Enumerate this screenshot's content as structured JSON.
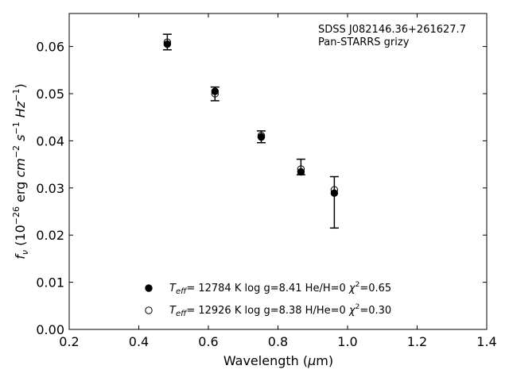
{
  "chart_data": {
    "type": "scatter",
    "annotation": [
      "SDSS J082146.36+261627.7",
      "Pan-STARRS grizy"
    ],
    "xlabel": "Wavelength (μm)",
    "ylabel": "f_ν (10^-26 erg cm^-2 s^-1 Hz^-1)",
    "xlim": [
      0.2,
      1.4
    ],
    "ylim": [
      0.0,
      0.067
    ],
    "xticks": [
      "0.2",
      "0.4",
      "0.6",
      "0.8",
      "1.0",
      "1.2",
      "1.4"
    ],
    "yticks": [
      "0.00",
      "0.01",
      "0.02",
      "0.03",
      "0.04",
      "0.05",
      "0.06"
    ],
    "grid": false,
    "legend_position": "bottom-center",
    "observed": {
      "x": [
        0.482,
        0.619,
        0.752,
        0.866,
        0.962
      ],
      "y": [
        0.0609,
        0.05,
        0.0409,
        0.0344,
        0.0268
      ],
      "yerr_low": [
        0.0593,
        0.0485,
        0.0396,
        0.0328,
        0.0215
      ],
      "yerr_high": [
        0.0626,
        0.0514,
        0.0421,
        0.0361,
        0.0324
      ]
    },
    "series": [
      {
        "name": "T_eff= 12784 K  log g=8.41  He/H=0  χ²=0.65",
        "marker": "filled-circle",
        "x": [
          0.482,
          0.619,
          0.752,
          0.866,
          0.962
        ],
        "y": [
          0.0605,
          0.0505,
          0.0408,
          0.0334,
          0.0289
        ]
      },
      {
        "name": "T_eff= 12926 K  log g=8.38  H/He=0  χ²=0.30",
        "marker": "open-circle",
        "x": [
          0.482,
          0.619,
          0.752,
          0.866,
          0.962
        ],
        "y": [
          0.0609,
          0.05,
          0.0411,
          0.034,
          0.0296
        ]
      }
    ],
    "colors": {
      "marker": "#000000",
      "axis": "#000000"
    }
  }
}
